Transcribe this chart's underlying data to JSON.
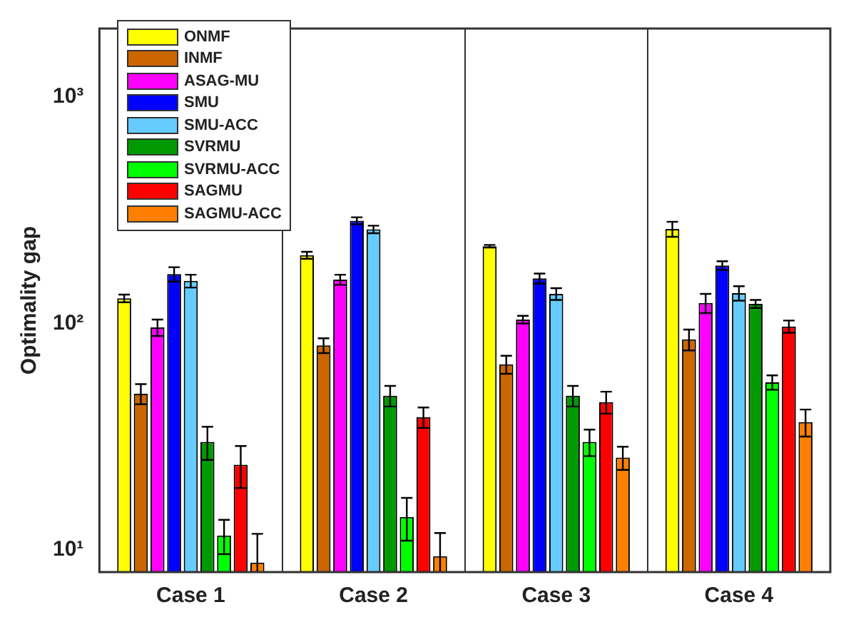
{
  "chart_data": {
    "type": "bar",
    "ylabel": "Optimality gap",
    "categories": [
      "Case 1",
      "Case 2",
      "Case 3",
      "Case 4"
    ],
    "series": [
      {
        "name": "ONMF",
        "color": "#ffff00",
        "values": [
          129,
          200,
          219,
          261
        ],
        "errors": [
          5,
          7,
          3,
          20
        ]
      },
      {
        "name": "INMF",
        "color": "#cc6600",
        "values": [
          49,
          80,
          66,
          85
        ],
        "errors": [
          5,
          6,
          6,
          9
        ]
      },
      {
        "name": "ASAG-MU",
        "color": "#ff00ff",
        "values": [
          96,
          156,
          104,
          123
        ],
        "errors": [
          8,
          8,
          4,
          12
        ]
      },
      {
        "name": "SMU",
        "color": "#0000ff",
        "values": [
          165,
          284,
          158,
          180
        ],
        "errors": [
          12,
          10,
          8,
          8
        ]
      },
      {
        "name": "SMU-ACC",
        "color": "#66ccff",
        "values": [
          154,
          260,
          135,
          136
        ],
        "errors": [
          10,
          10,
          8,
          10
        ]
      },
      {
        "name": "SVRMU",
        "color": "#009900",
        "values": [
          30,
          48,
          48,
          122
        ],
        "errors": [
          5,
          5,
          5,
          5
        ]
      },
      {
        "name": "SVRMU-ACC",
        "color": "#00ff00",
        "values": [
          11.6,
          14,
          30,
          55
        ],
        "errors": [
          2,
          3,
          4,
          4
        ]
      },
      {
        "name": "SAGMU",
        "color": "#ff0000",
        "values": [
          23.8,
          38.6,
          45,
          97
        ],
        "errors": [
          5,
          4,
          5,
          6
        ]
      },
      {
        "name": "SAGMU-ACC",
        "color": "#ff8000",
        "values": [
          8.8,
          9.4,
          25.6,
          36.7
        ],
        "errors": [
          [
            8,
            11.8
          ],
          [
            8,
            11.9
          ],
          3,
          5
        ]
      }
    ],
    "log": "y",
    "ylim": [
      8,
      2000
    ],
    "yticks": [
      {
        "value": 10,
        "label": "10¹"
      },
      {
        "value": 100,
        "label": "10²"
      },
      {
        "value": 1000,
        "label": "10³"
      }
    ],
    "grid": "x",
    "legend": "top left"
  }
}
